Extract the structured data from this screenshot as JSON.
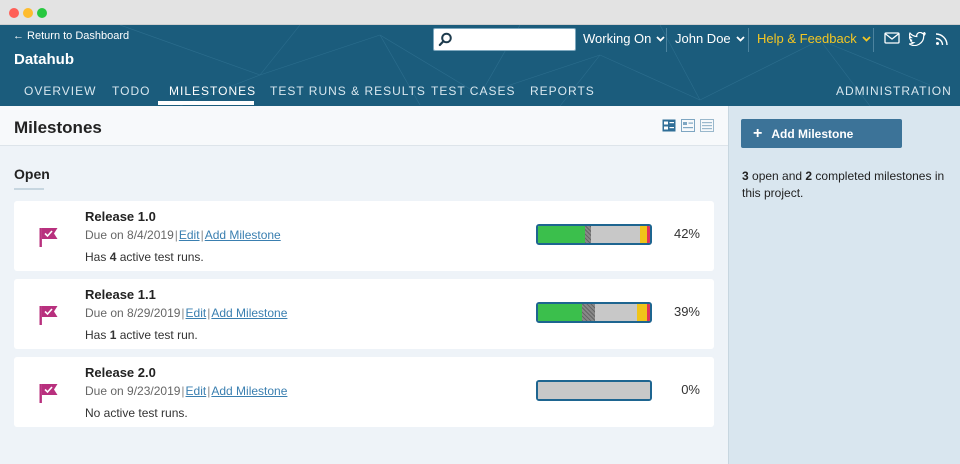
{
  "header": {
    "back_link": "← Return to Dashboard",
    "project_title": "Datahub",
    "search": {
      "value": "",
      "placeholder": ""
    },
    "working_on": "Working On",
    "user": "John Doe",
    "help": "Help & Feedback",
    "colors": {
      "bar": "#1b5c7c",
      "help": "#f3c623"
    }
  },
  "nav": {
    "tabs": [
      {
        "label": "OVERVIEW"
      },
      {
        "label": "TODO"
      },
      {
        "label": "MILESTONES"
      },
      {
        "label": "TEST RUNS & RESULTS"
      },
      {
        "label": "TEST CASES"
      },
      {
        "label": "REPORTS"
      }
    ],
    "admin": "ADMINISTRATION",
    "active": "MILESTONES"
  },
  "page": {
    "title": "Milestones",
    "section": "Open"
  },
  "milestones": [
    {
      "name": "Release 1.0",
      "due": "Due on 8/4/2019",
      "edit": "Edit",
      "add": "Add Milestone",
      "runs_prefix": "Has ",
      "runs_count": "4",
      "runs_suffix": " active test runs.",
      "percent": "42%",
      "progress": {
        "passed": 0.42,
        "blocked": 0.05,
        "untested": 0.44,
        "retest": 0.06,
        "failed": 0.03
      }
    },
    {
      "name": "Release 1.1",
      "due": "Due on 8/29/2019",
      "edit": "Edit",
      "add": "Add Milestone",
      "runs_prefix": "Has ",
      "runs_count": "1",
      "runs_suffix": " active test run.",
      "percent": "39%",
      "progress": {
        "passed": 0.39,
        "blocked": 0.12,
        "untested": 0.37,
        "retest": 0.09,
        "failed": 0.03
      }
    },
    {
      "name": "Release 2.0",
      "due": "Due on 9/23/2019",
      "edit": "Edit",
      "add": "Add Milestone",
      "runs_prefix": "",
      "runs_count": "",
      "runs_suffix": "No active test runs.",
      "percent": "0%",
      "progress": {
        "passed": 0,
        "blocked": 0,
        "untested": 1,
        "retest": 0,
        "failed": 0
      }
    }
  ],
  "status_colors": {
    "passed": "#3bbf4c",
    "blocked": "#777777",
    "untested": "#c8c8c8",
    "retest": "#f0c419",
    "failed": "#e0325a"
  },
  "sidebar": {
    "add_button": "Add Milestone",
    "open_count": "3",
    "open_text": " open and ",
    "completed_count": "2",
    "completed_text": " completed milestones in this project."
  }
}
